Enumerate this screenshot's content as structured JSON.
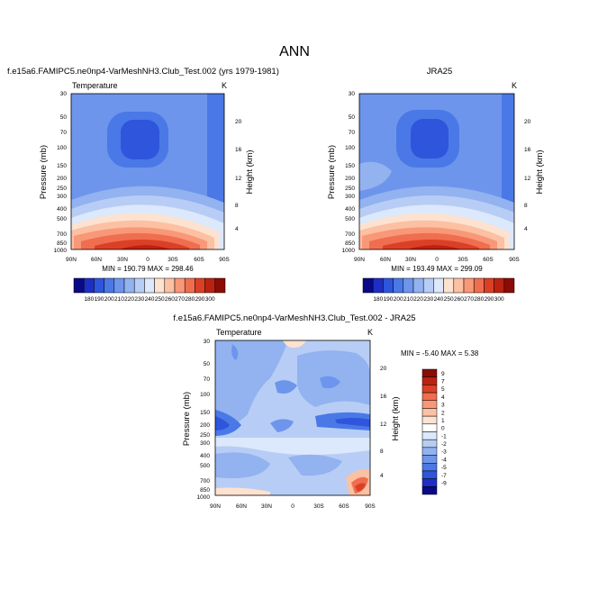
{
  "page_title": "ANN",
  "panels": [
    {
      "title": "f.e15a6.FAMIPC5.ne0np4-VarMeshNH3.Club_Test.002 (yrs 1979-1981)",
      "variable": "Temperature",
      "units": "K",
      "stats": "MIN = 190.79   MAX = 298.46"
    },
    {
      "title": "JRA25",
      "variable": "Temperature",
      "units": "K",
      "stats": "MIN = 193.49   MAX = 299.09"
    },
    {
      "title": "f.e15a6.FAMIPC5.ne0np4-VarMeshNH3.Club_Test.002 - JRA25",
      "variable": "Temperature",
      "units": "K",
      "stats": "MIN = -5.40   MAX =  5.38"
    }
  ],
  "chart_data": [
    {
      "type": "heatmap",
      "title": "f.e15a6.FAMIPC5.ne0np4-VarMeshNH3.Club_Test.002 (yrs 1979-1981)",
      "xlabel": "",
      "ylabel": "Pressure (mb)",
      "ylabel_right": "Height (km)",
      "x_ticks": [
        "90N",
        "60N",
        "30N",
        "0",
        "30S",
        "60S",
        "90S"
      ],
      "y_ticks": [
        "30",
        "50",
        "70",
        "100",
        "150",
        "200",
        "250",
        "300",
        "400",
        "500",
        "700",
        "850",
        "1000"
      ],
      "y_ticks_right": [
        "20",
        "16",
        "12",
        "8",
        "4"
      ],
      "y_scale": "log",
      "ylim": [
        1000,
        30
      ],
      "zmin": 190.79,
      "zmax": 298.46,
      "legend_labels": [
        "180",
        "190",
        "200",
        "210",
        "220",
        "230",
        "240",
        "250",
        "260",
        "270",
        "280",
        "290",
        "300"
      ],
      "legend_colors": [
        "#0a0a87",
        "#1f2ec4",
        "#2e55dc",
        "#4a78e6",
        "#6d95ec",
        "#92b2f0",
        "#b7cdf5",
        "#dce8fb",
        "#fde2d0",
        "#fcc0a3",
        "#f89878",
        "#ef6e4f",
        "#db4026",
        "#bb2211",
        "#8a0c05"
      ],
      "legend_placement": "bottom"
    },
    {
      "type": "heatmap",
      "title": "JRA25",
      "xlabel": "",
      "ylabel": "Pressure (mb)",
      "ylabel_right": "Height (km)",
      "x_ticks": [
        "90N",
        "60N",
        "30N",
        "0",
        "30S",
        "60S",
        "90S"
      ],
      "y_ticks": [
        "30",
        "50",
        "70",
        "100",
        "150",
        "200",
        "250",
        "300",
        "400",
        "500",
        "700",
        "850",
        "1000"
      ],
      "y_ticks_right": [
        "20",
        "16",
        "12",
        "8",
        "4"
      ],
      "y_scale": "log",
      "ylim": [
        1000,
        30
      ],
      "zmin": 193.49,
      "zmax": 299.09,
      "legend_labels": [
        "180",
        "190",
        "200",
        "210",
        "220",
        "230",
        "240",
        "250",
        "260",
        "270",
        "280",
        "290",
        "300"
      ],
      "legend_colors": [
        "#0a0a87",
        "#1f2ec4",
        "#2e55dc",
        "#4a78e6",
        "#6d95ec",
        "#92b2f0",
        "#b7cdf5",
        "#dce8fb",
        "#fde2d0",
        "#fcc0a3",
        "#f89878",
        "#ef6e4f",
        "#db4026",
        "#bb2211",
        "#8a0c05"
      ],
      "legend_placement": "bottom"
    },
    {
      "type": "heatmap",
      "title": "f.e15a6.FAMIPC5.ne0np4-VarMeshNH3.Club_Test.002 - JRA25",
      "xlabel": "",
      "ylabel": "Pressure (mb)",
      "ylabel_right": "Height (km)",
      "x_ticks": [
        "90N",
        "60N",
        "30N",
        "0",
        "30S",
        "60S",
        "90S"
      ],
      "y_ticks": [
        "30",
        "50",
        "70",
        "100",
        "150",
        "200",
        "250",
        "300",
        "400",
        "500",
        "700",
        "850",
        "1000"
      ],
      "y_ticks_right": [
        "20",
        "16",
        "12",
        "8",
        "4"
      ],
      "y_scale": "log",
      "ylim": [
        1000,
        30
      ],
      "zmin": -5.4,
      "zmax": 5.38,
      "legend_labels": [
        "9",
        "7",
        "5",
        "4",
        "3",
        "2",
        "1",
        "0",
        "-1",
        "-2",
        "-3",
        "-4",
        "-5",
        "-7",
        "-9"
      ],
      "legend_colors": [
        "#8a0c05",
        "#bb2211",
        "#db4026",
        "#ef6e4f",
        "#f89878",
        "#fcc0a3",
        "#fde2d0",
        "#ffffff",
        "#dce8fb",
        "#b7cdf5",
        "#92b2f0",
        "#6d95ec",
        "#4a78e6",
        "#2e55dc",
        "#1f2ec4",
        "#0a0a87"
      ],
      "legend_placement": "right"
    }
  ]
}
